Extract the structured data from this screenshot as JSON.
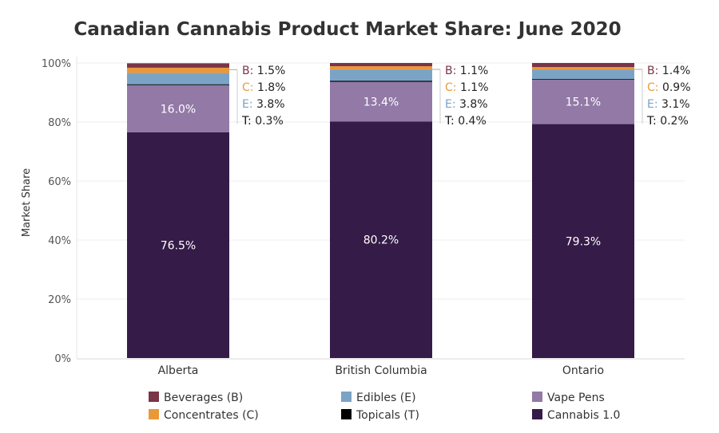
{
  "chart_data": {
    "type": "bar",
    "stacked": true,
    "title": "Canadian Cannabis Product Market Share: June 2020",
    "ylabel": "Market Share",
    "xlabel": "",
    "ylim": [
      0,
      100
    ],
    "yticks": [
      "0%",
      "20%",
      "40%",
      "60%",
      "80%",
      "100%"
    ],
    "grid": true,
    "legend_position": "bottom",
    "categories": [
      "Alberta",
      "British Columbia",
      "Ontario"
    ],
    "series": [
      {
        "name": "Cannabis 1.0",
        "abbr": "",
        "color": "#351b47",
        "values": [
          76.5,
          80.2,
          79.3
        ],
        "labels": [
          "76.5%",
          "80.2%",
          "79.3%"
        ]
      },
      {
        "name": "Vape Pens",
        "abbr": "",
        "color": "#9279a6",
        "values": [
          16.0,
          13.4,
          15.1
        ],
        "labels": [
          "16.0%",
          "13.4%",
          "15.1%"
        ]
      },
      {
        "name": "Topicals (T)",
        "abbr": "T",
        "color": "#000000",
        "values": [
          0.3,
          0.4,
          0.2
        ],
        "labels": [
          "0.3%",
          "0.4%",
          "0.2%"
        ]
      },
      {
        "name": "Edibles (E)",
        "abbr": "E",
        "color": "#7ba3c6",
        "values": [
          3.8,
          3.8,
          3.1
        ],
        "labels": [
          "3.8%",
          "3.8%",
          "3.1%"
        ]
      },
      {
        "name": "Concentrates (C)",
        "abbr": "C",
        "color": "#e9993a",
        "values": [
          1.8,
          1.1,
          0.9
        ],
        "labels": [
          "1.8%",
          "1.1%",
          "0.9%"
        ]
      },
      {
        "name": "Beverages (B)",
        "abbr": "B",
        "color": "#7a3547",
        "values": [
          1.5,
          1.1,
          1.4
        ],
        "labels": [
          "1.5%",
          "1.1%",
          "1.4%"
        ]
      }
    ],
    "annotation_order": [
      "B",
      "C",
      "E",
      "T"
    ],
    "legend_order": [
      "Beverages (B)",
      "Edibles (E)",
      "Vape Pens",
      "Concentrates (C)",
      "Topicals (T)",
      "Cannabis 1.0"
    ]
  }
}
